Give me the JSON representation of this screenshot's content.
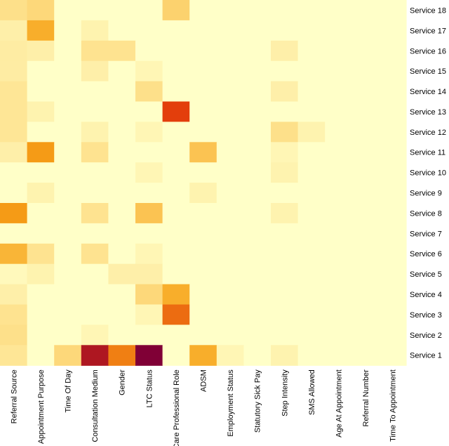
{
  "chart_data": {
    "type": "heatmap",
    "title": "",
    "xlabel": "",
    "ylabel": "",
    "legend": "none",
    "color_scale": {
      "low": "#FFFFC8",
      "mid_low": "#FDD87A",
      "mid": "#F7A417",
      "mid_high": "#E0300A",
      "high": "#800036"
    },
    "x_categories": [
      "Referral Source",
      "Appointment Purpose",
      "Time Of Day",
      "Consultation Medium",
      "Gender",
      "LTC Status",
      "Care Professional Role",
      "ADSM",
      "Employment Status",
      "Statutory Sick Pay",
      "Step Intensity",
      "SMS Allowed",
      "Age At Appointment",
      "Referral Number",
      "Time To Appointment"
    ],
    "y_categories": [
      "Service 18",
      "Service 17",
      "Service 16",
      "Service 15",
      "Service 14",
      "Service 13",
      "Service 12",
      "Service 11",
      "Service 10",
      "Service 9",
      "Service 8",
      "Service 7",
      "Service 6",
      "Service 5",
      "Service 4",
      "Service 3",
      "Service 2",
      "Service 1"
    ],
    "values": [
      [
        0.2,
        0.25,
        0,
        0,
        0,
        0,
        0.28,
        0,
        0,
        0,
        0,
        0,
        0,
        0,
        0
      ],
      [
        0.1,
        0.45,
        0,
        0.08,
        0,
        0,
        0,
        0,
        0,
        0,
        0,
        0,
        0,
        0,
        0
      ],
      [
        0.12,
        0.1,
        0,
        0.18,
        0.18,
        0,
        0,
        0,
        0,
        0,
        0.1,
        0,
        0,
        0,
        0
      ],
      [
        0.12,
        0,
        0,
        0.1,
        0,
        0.06,
        0,
        0,
        0,
        0,
        0,
        0,
        0,
        0,
        0
      ],
      [
        0.16,
        0,
        0,
        0,
        0,
        0.2,
        0,
        0,
        0,
        0,
        0.1,
        0,
        0,
        0,
        0
      ],
      [
        0.16,
        0.08,
        0,
        0,
        0,
        0,
        0.72,
        0,
        0,
        0,
        0,
        0,
        0,
        0,
        0
      ],
      [
        0.16,
        0,
        0,
        0.08,
        0,
        0.06,
        0,
        0,
        0,
        0,
        0.2,
        0.08,
        0,
        0,
        0
      ],
      [
        0.1,
        0.52,
        0,
        0.18,
        0,
        0,
        0,
        0.35,
        0,
        0,
        0.06,
        0,
        0,
        0,
        0
      ],
      [
        0,
        0,
        0,
        0,
        0,
        0.06,
        0,
        0,
        0,
        0,
        0.08,
        0,
        0,
        0,
        0
      ],
      [
        0,
        0.08,
        0,
        0,
        0,
        0,
        0,
        0.08,
        0,
        0,
        0,
        0,
        0,
        0,
        0
      ],
      [
        0.52,
        0,
        0,
        0.18,
        0,
        0.35,
        0,
        0,
        0,
        0,
        0.08,
        0,
        0,
        0,
        0
      ],
      [
        0,
        0,
        0,
        0,
        0,
        0,
        0,
        0,
        0,
        0,
        0,
        0,
        0,
        0,
        0
      ],
      [
        0.42,
        0.18,
        0,
        0.18,
        0,
        0.06,
        0,
        0,
        0,
        0,
        0,
        0,
        0,
        0,
        0
      ],
      [
        0.04,
        0.08,
        0,
        0,
        0.1,
        0.1,
        0,
        0,
        0,
        0,
        0,
        0,
        0,
        0,
        0
      ],
      [
        0.1,
        0,
        0,
        0,
        0,
        0.25,
        0.45,
        0,
        0,
        0,
        0,
        0,
        0,
        0,
        0
      ],
      [
        0.18,
        0,
        0,
        0,
        0,
        0.06,
        0.62,
        0,
        0,
        0,
        0,
        0,
        0,
        0,
        0
      ],
      [
        0.2,
        0,
        0,
        0.06,
        0,
        0,
        0,
        0,
        0,
        0,
        0,
        0,
        0,
        0,
        0
      ],
      [
        0.16,
        0,
        0.25,
        0.88,
        0.58,
        1.0,
        0,
        0.45,
        0.06,
        0,
        0.08,
        0,
        0,
        0,
        0
      ]
    ]
  }
}
